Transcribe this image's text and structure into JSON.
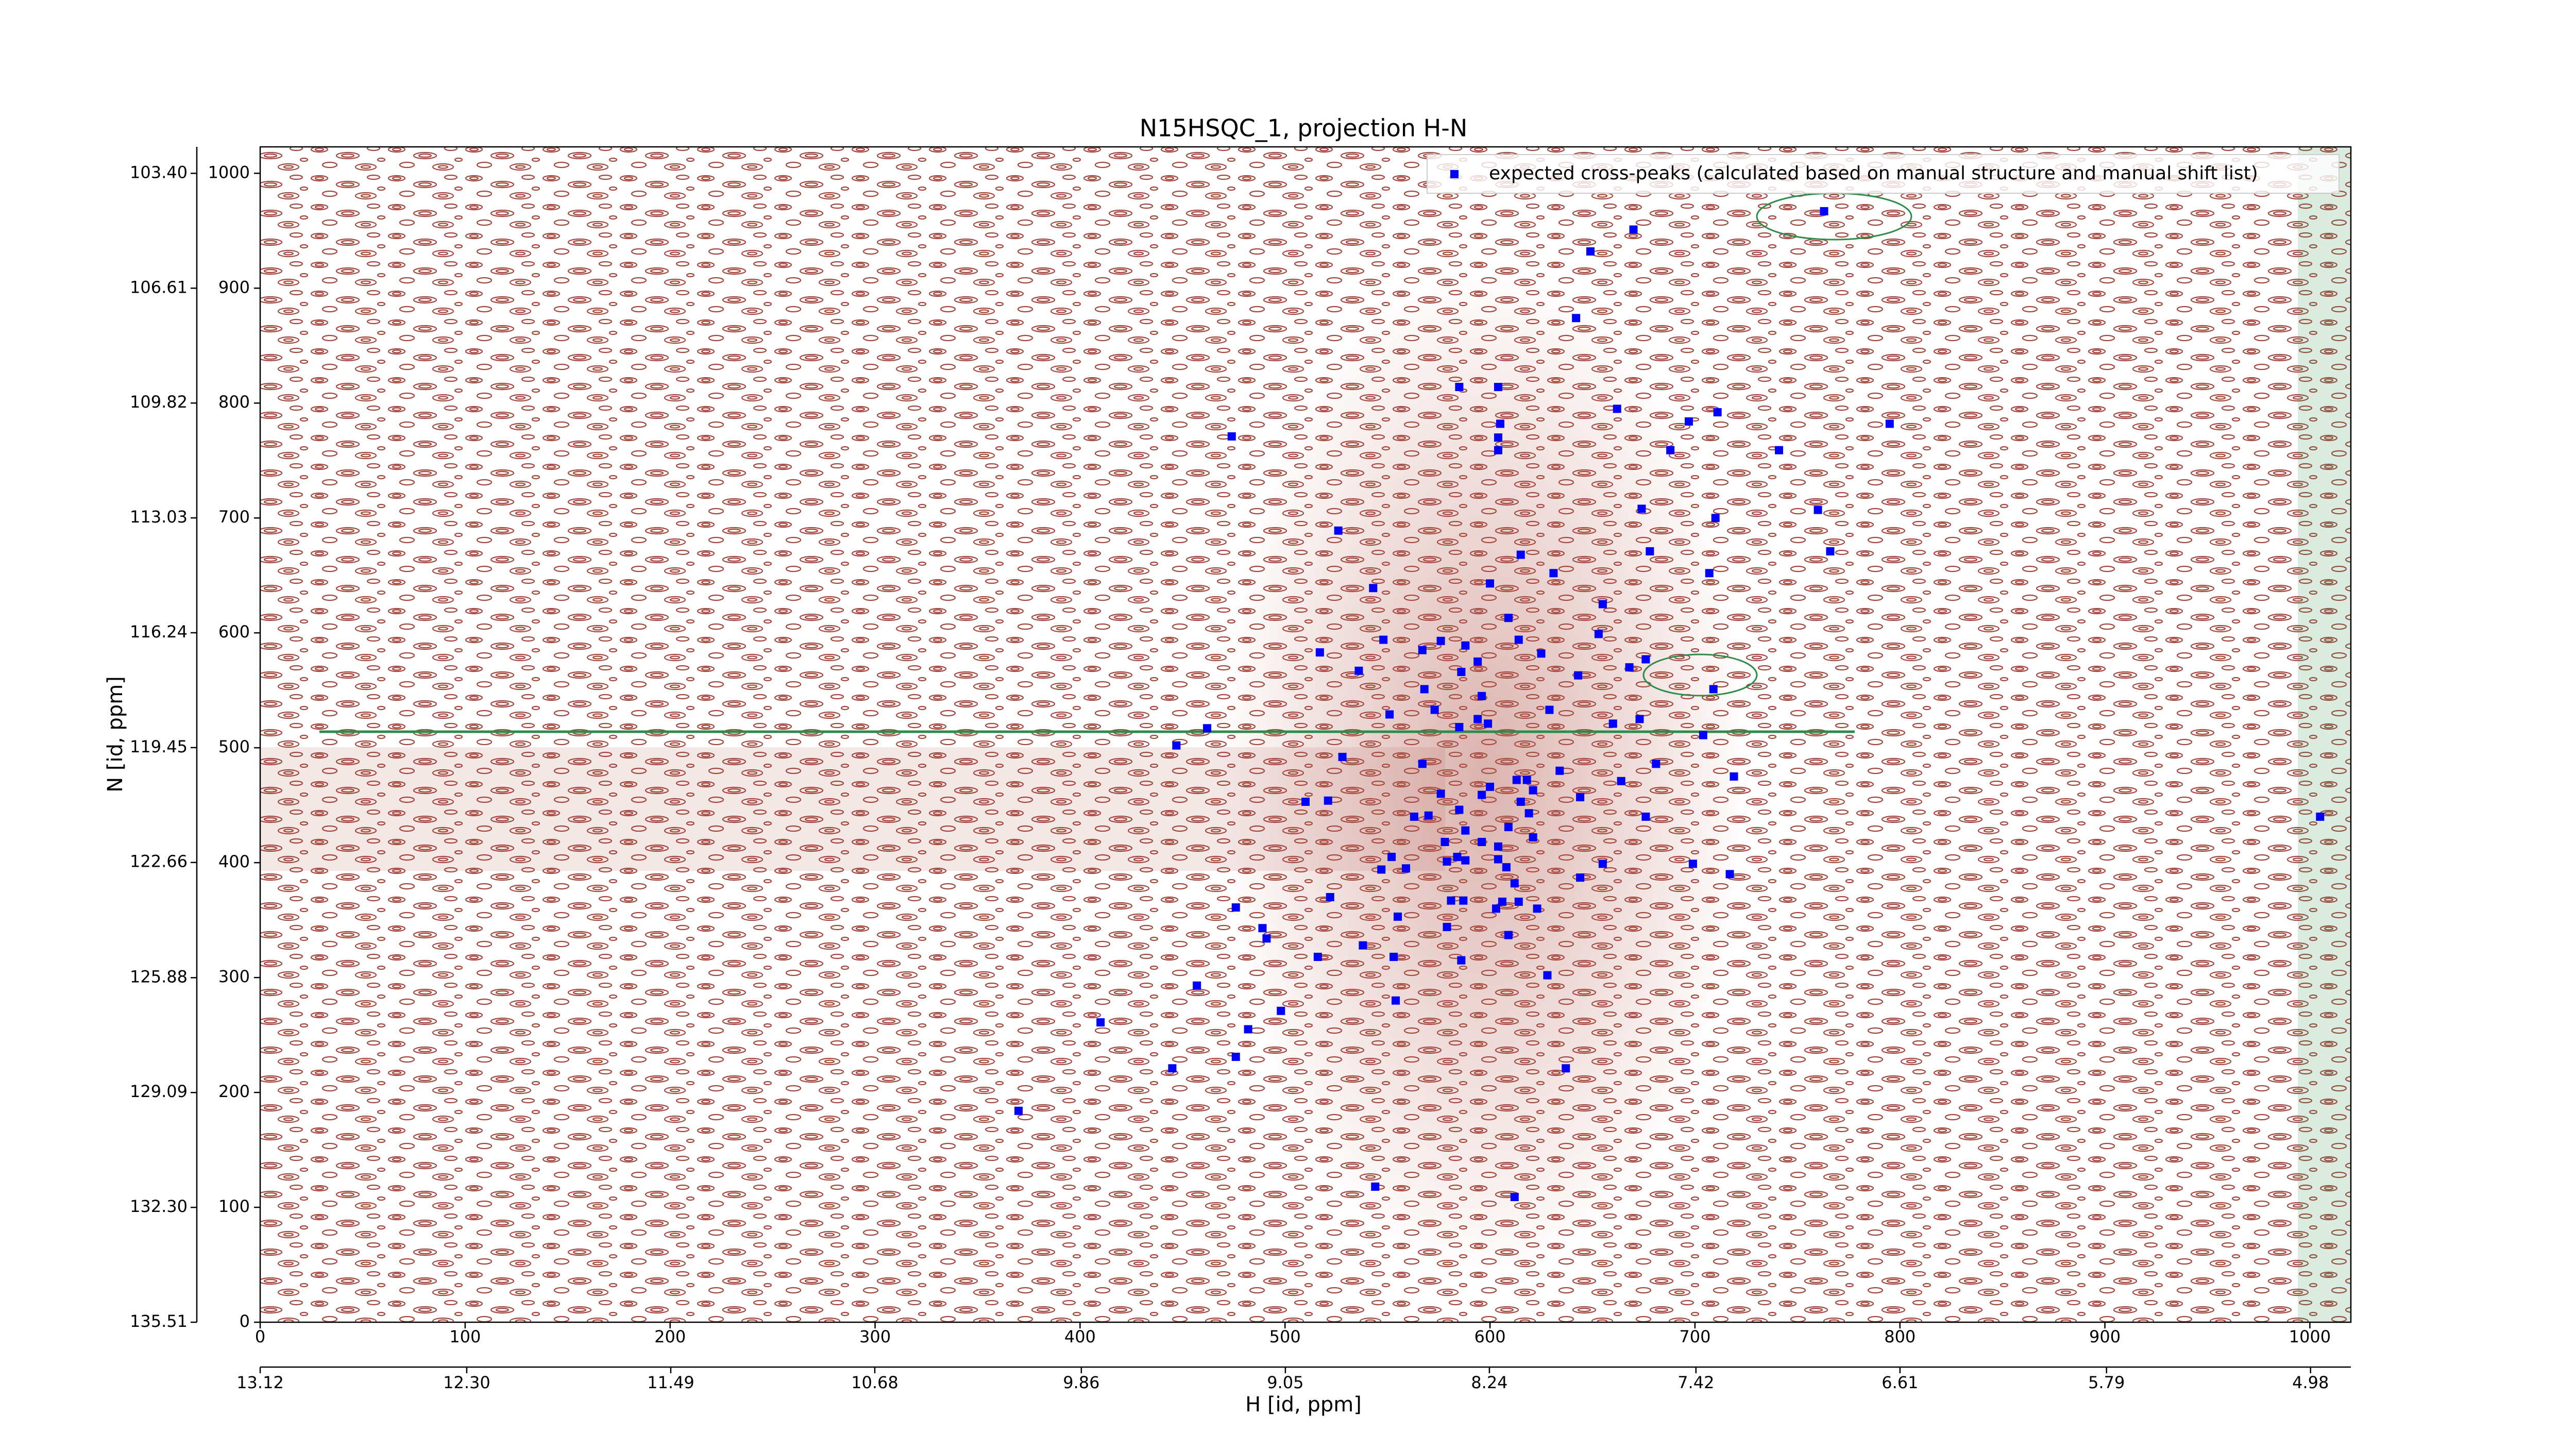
{
  "chart_data": {
    "type": "scatter",
    "title": "N15HSQC_1, projection H-N",
    "x_label": "H [id, ppm]",
    "y_label": "N [id, ppm]",
    "legend": "upper right",
    "xlim": [
      0,
      1020
    ],
    "ylim": [
      0,
      1023
    ],
    "xticks": [
      0,
      100,
      200,
      300,
      400,
      500,
      600,
      700,
      800,
      900,
      1000
    ],
    "yticks": [
      0,
      100,
      200,
      300,
      400,
      500,
      600,
      700,
      800,
      900,
      1000
    ],
    "x2lim": [
      13.12,
      4.82
    ],
    "x2ticks": [
      13.12,
      {
        "value": 12.3,
        "label": "12.30"
      },
      11.49,
      10.68,
      9.86,
      9.05,
      8.24,
      7.42,
      6.61,
      5.79,
      4.98
    ],
    "y2lim": [
      135.51,
      102.66
    ],
    "y2ticks": [
      {
        "value": 103.4,
        "label": "103.40"
      },
      106.61,
      109.82,
      113.03,
      116.24,
      119.45,
      122.66,
      125.88,
      129.09,
      {
        "value": 132.3,
        "label": "132.30"
      },
      135.51
    ],
    "series": [
      {
        "name": "expected cross-peaks (calculated based on manual structure and manual shift list)",
        "color": "#0000ff",
        "x": [
          763,
          670,
          649,
          642,
          585,
          604,
          662,
          605,
          697,
          711,
          795,
          474,
          604,
          604,
          688,
          741,
          674,
          760,
          710,
          526,
          615,
          678,
          766,
          707,
          631,
          600,
          543,
          655,
          609,
          653,
          548,
          614,
          576,
          567,
          588,
          517,
          625,
          676,
          668,
          536,
          586,
          594,
          643,
          568,
          709,
          596,
          551,
          573,
          629,
          594,
          599,
          585,
          673,
          660,
          462,
          704,
          447,
          528,
          567,
          681,
          634,
          613,
          618,
          719,
          664,
          600,
          621,
          644,
          510,
          521,
          596,
          576,
          615,
          585,
          570,
          563,
          676,
          619,
          609,
          588,
          621,
          596,
          578,
          604,
          552,
          584,
          579,
          588,
          604,
          608,
          655,
          699,
          547,
          559,
          717,
          644,
          612,
          522,
          581,
          587,
          606,
          614,
          603,
          476,
          623,
          555,
          579,
          489,
          609,
          491,
          538,
          553,
          516,
          586,
          628,
          457,
          554,
          498,
          410,
          482,
          476,
          637,
          445,
          370,
          544,
          612,
          1005
        ],
        "values": [
          967,
          951,
          932,
          874,
          814,
          814,
          795,
          782,
          784,
          792,
          782,
          771,
          770,
          759,
          759,
          759,
          708,
          707,
          700,
          689,
          668,
          671,
          671,
          652,
          652,
          643,
          639,
          625,
          613,
          599,
          594,
          594,
          593,
          585,
          589,
          583,
          582,
          577,
          570,
          567,
          566,
          575,
          563,
          551,
          551,
          545,
          529,
          533,
          533,
          525,
          521,
          518,
          525,
          521,
          517,
          511,
          502,
          492,
          486,
          486,
          480,
          472,
          472,
          475,
          471,
          466,
          463,
          457,
          453,
          454,
          459,
          460,
          453,
          446,
          441,
          440,
          440,
          443,
          431,
          428,
          422,
          418,
          418,
          414,
          405,
          405,
          401,
          402,
          403,
          396,
          399,
          399,
          394,
          395,
          390,
          387,
          382,
          370,
          367,
          367,
          366,
          366,
          360,
          361,
          360,
          353,
          344,
          343,
          337,
          334,
          328,
          318,
          318,
          315,
          302,
          293,
          280,
          271,
          261,
          255,
          231,
          221,
          221,
          184,
          118,
          109,
          440
        ]
      }
    ]
  }
}
